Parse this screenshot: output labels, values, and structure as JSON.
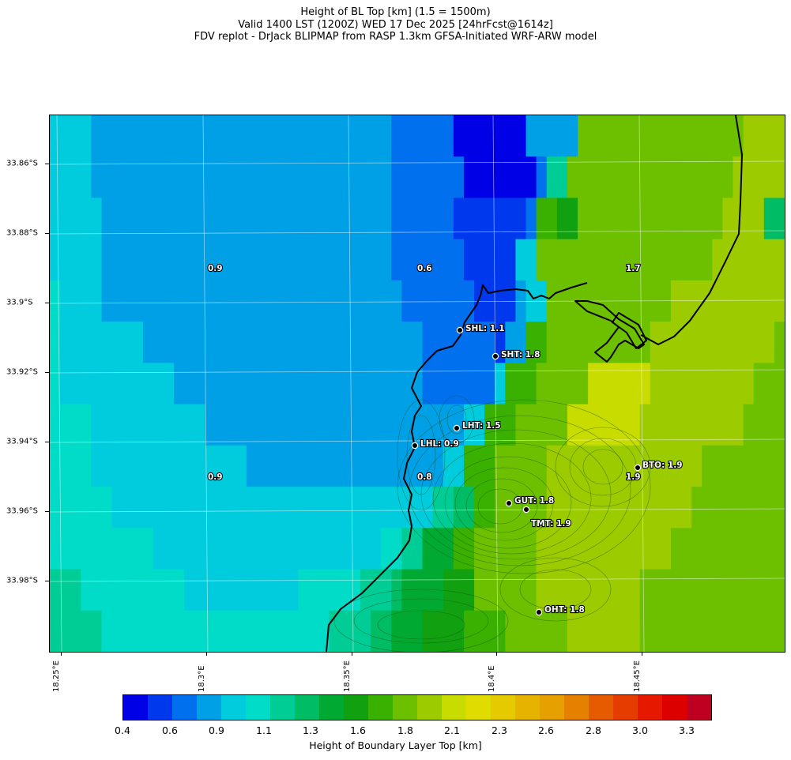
{
  "title": {
    "line1": "Height of BL Top [km] (1.5 = 1500m)",
    "line2": "Valid 1400 LST (1200Z) WED 17 Dec 2025 [24hrFcst@1614z]",
    "line3": "FDV replot - DrJack BLIPMAP from RASP 1.3km GFSA-Initiated WRF-ARW model"
  },
  "axes": {
    "lat_labels": [
      "33.86°S",
      "33.88°S",
      "33.9°S",
      "33.92°S",
      "33.94°S",
      "33.96°S",
      "33.98°S"
    ],
    "lon_labels": [
      "18.25°E",
      "18.3°E",
      "18.35°E",
      "18.4°E",
      "18.45°E"
    ]
  },
  "colorbar": {
    "label": "Height of Boundary Layer Top [km]",
    "tick_labels": [
      "0.4",
      "0.6",
      "0.9",
      "1.1",
      "1.3",
      "1.6",
      "1.8",
      "2.1",
      "2.3",
      "2.6",
      "2.8",
      "3.0",
      "3.3"
    ],
    "colors": [
      "#0000e6",
      "#0038ee",
      "#0070ee",
      "#00a0e6",
      "#00ccdd",
      "#00dcc8",
      "#00cc96",
      "#00bc64",
      "#00aa32",
      "#10a010",
      "#3ab000",
      "#6cc000",
      "#9ccc00",
      "#c8dc00",
      "#e0dc00",
      "#e6ca00",
      "#e6b400",
      "#e6a000",
      "#e68000",
      "#e65a00",
      "#e63c00",
      "#e61800",
      "#dc0000",
      "#c00020"
    ]
  },
  "field_labels": [
    "0.9",
    "0.6",
    "1.7",
    "0.9",
    "0.8",
    "1.9"
  ],
  "stations": [
    {
      "label": "SHL: 1.1"
    },
    {
      "label": "SHT: 1.8"
    },
    {
      "label": "LHT: 1.5"
    },
    {
      "label": "LHL: 0.9"
    },
    {
      "label": "BTO: 1.9"
    },
    {
      "label": "GUT: 1.8"
    },
    {
      "label": "TMT: 1.9"
    },
    {
      "label": "OHT: 1.8"
    }
  ]
}
